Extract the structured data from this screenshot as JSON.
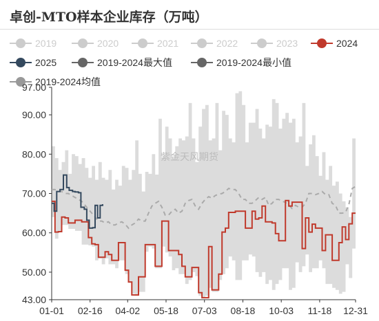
{
  "title": "卓创-MTO样本企业库存（万吨）",
  "watermark": "紫金天风期货",
  "colors": {
    "y2019": "#cccccc",
    "y2020": "#cccccc",
    "y2021": "#cccccc",
    "y2022": "#cccccc",
    "y2023": "#cccccc",
    "y2024": "#c0392b",
    "y2025": "#34495e",
    "max": "#666666",
    "min": "#666666",
    "avg": "#999999",
    "band": "#dcdcdc",
    "avg_line": "#aaaaaa"
  },
  "chart_data": {
    "type": "line",
    "xlabel": "",
    "ylabel": "",
    "ylim": [
      43,
      97
    ],
    "y_ticks": [
      "43.00",
      "50.00",
      "60.00",
      "70.00",
      "80.00",
      "90.00",
      "97.00"
    ],
    "y_tick_values": [
      43,
      50,
      60,
      70,
      80,
      90,
      97
    ],
    "x_ticks": [
      "01-01",
      "02-16",
      "04-02",
      "05-18",
      "07-03",
      "08-18",
      "10-03",
      "11-18",
      "12-31"
    ],
    "x_tick_days": [
      0,
      46,
      91,
      137,
      183,
      229,
      275,
      321,
      364
    ],
    "legend": {
      "row1": [
        "2019",
        "2020",
        "2021",
        "2022",
        "2023",
        "2024"
      ],
      "row2": [
        "2025",
        "2019-2024最大值",
        "2019-2024最小值"
      ],
      "row3": [
        "2019-2024均值"
      ]
    },
    "series": [
      {
        "name": "2025",
        "x": [
          0,
          3,
          6,
          10,
          14,
          18,
          21,
          25,
          28,
          32,
          35,
          39,
          42,
          45,
          49,
          52,
          55,
          58,
          61
        ],
        "y": [
          67.5,
          65.5,
          70.5,
          71,
          74.7,
          71.5,
          70.8,
          70.5,
          70.4,
          70.2,
          66.5,
          66,
          63.2,
          61.2,
          61.3,
          67,
          63.8,
          67,
          67.3
        ]
      },
      {
        "name": "2024",
        "x": [
          0,
          4,
          8,
          12,
          16,
          20,
          24,
          28,
          32,
          36,
          40,
          44,
          48,
          52,
          56,
          60,
          64,
          68,
          72,
          76,
          80,
          84,
          88,
          92,
          96,
          100,
          104,
          108,
          112,
          116,
          120,
          124,
          128,
          132,
          136,
          140,
          144,
          148,
          152,
          156,
          160,
          164,
          168,
          172,
          176,
          180,
          184,
          188,
          192,
          196,
          200,
          204,
          208,
          212,
          216,
          220,
          224,
          228,
          232,
          236,
          240,
          244,
          248,
          252,
          256,
          260,
          264,
          268,
          272,
          276,
          280,
          284,
          288,
          292,
          296,
          300,
          304,
          308,
          312,
          316,
          320,
          324,
          328,
          332,
          336,
          340,
          344,
          348,
          352,
          356,
          360,
          364
        ],
        "y": [
          68,
          60.2,
          60.3,
          64,
          63.8,
          62.5,
          62.5,
          63.2,
          63.2,
          62.8,
          62.8,
          58.8,
          57.2,
          57,
          53.8,
          53.8,
          55.2,
          54.5,
          53,
          53,
          57.5,
          57.5,
          50.5,
          47.5,
          44.2,
          44.2,
          48.8,
          48.8,
          57,
          57,
          57,
          51.5,
          51.5,
          63,
          63,
          55.5,
          55.5,
          55.5,
          54.5,
          51.5,
          48.8,
          48.8,
          51.2,
          51.2,
          44.8,
          43.5,
          43.5,
          56.5,
          45.5,
          45.5,
          49.5,
          60.2,
          61.2,
          65.2,
          65.2,
          65.5,
          65.5,
          65.5,
          61.2,
          61.2,
          65.5,
          63.5,
          63.8,
          66.8,
          62.8,
          62.8,
          62.5,
          59.8,
          58,
          58,
          68.2,
          66.8,
          67.8,
          67.8,
          67.8,
          56,
          63.8,
          60.2,
          62.2,
          61.2,
          61.2,
          55.5,
          59.5,
          59.5,
          53,
          53,
          57.5,
          61.5,
          58.3,
          62.3,
          65,
          65
        ]
      },
      {
        "name": "2019-2024最大值",
        "x": [
          0,
          4,
          8,
          12,
          16,
          20,
          24,
          28,
          32,
          36,
          40,
          44,
          48,
          52,
          56,
          60,
          64,
          68,
          72,
          76,
          80,
          84,
          88,
          92,
          96,
          100,
          104,
          108,
          112,
          116,
          120,
          124,
          128,
          132,
          136,
          140,
          144,
          148,
          152,
          156,
          160,
          164,
          168,
          172,
          176,
          180,
          184,
          188,
          192,
          196,
          200,
          204,
          208,
          212,
          216,
          220,
          224,
          228,
          232,
          236,
          240,
          244,
          248,
          252,
          256,
          260,
          264,
          268,
          272,
          276,
          280,
          284,
          288,
          292,
          296,
          300,
          304,
          308,
          312,
          316,
          320,
          324,
          328,
          332,
          336,
          340,
          344,
          348,
          352,
          356,
          360,
          364
        ],
        "y": [
          82,
          79,
          76,
          78,
          81,
          75,
          80,
          79.5,
          77.5,
          79,
          76.5,
          74,
          77,
          73.5,
          78,
          74,
          73.5,
          76,
          71,
          73.5,
          72,
          77,
          76.5,
          73.5,
          76,
          83.5,
          75,
          70.5,
          75.5,
          75,
          80,
          74.8,
          89,
          79,
          87,
          84,
          79,
          82,
          84,
          83.5,
          84.5,
          93,
          84,
          78,
          87,
          91.5,
          92.5,
          83.5,
          84,
          93,
          81,
          91,
          90,
          84,
          83,
          95.5,
          96,
          92.5,
          83,
          88,
          88,
          91.5,
          86.5,
          84,
          87.5,
          87,
          94,
          93,
          86.5,
          89,
          90.5,
          88,
          89,
          83,
          84.5,
          93,
          77,
          82.5,
          84.8,
          79.5,
          74.5,
          80.5,
          73.5,
          77,
          72,
          73,
          70,
          68,
          66.5,
          64,
          84,
          83.5
        ]
      },
      {
        "name": "2019-2024最小值",
        "x": [
          0,
          4,
          8,
          12,
          16,
          20,
          24,
          28,
          32,
          36,
          40,
          44,
          48,
          52,
          56,
          60,
          64,
          68,
          72,
          76,
          80,
          84,
          88,
          92,
          96,
          100,
          104,
          108,
          112,
          116,
          120,
          124,
          128,
          132,
          136,
          140,
          144,
          148,
          152,
          156,
          160,
          164,
          168,
          172,
          176,
          180,
          184,
          188,
          192,
          196,
          200,
          204,
          208,
          212,
          216,
          220,
          224,
          228,
          232,
          236,
          240,
          244,
          248,
          252,
          256,
          260,
          264,
          268,
          272,
          276,
          280,
          284,
          288,
          292,
          296,
          300,
          304,
          308,
          312,
          316,
          320,
          324,
          328,
          332,
          336,
          340,
          344,
          348,
          352,
          356,
          360,
          364
        ],
        "y": [
          64,
          58.5,
          60.2,
          62,
          62,
          61,
          61,
          60.5,
          60.5,
          57,
          57,
          56.8,
          56.5,
          53,
          53.5,
          52,
          53.5,
          52,
          52,
          51,
          53,
          53,
          49.5,
          47.5,
          44.5,
          44,
          45,
          45,
          55.2,
          56.5,
          56,
          51,
          51,
          56.5,
          55,
          54,
          50.5,
          51,
          49.5,
          49.5,
          47,
          48,
          50,
          49,
          44,
          43.5,
          44,
          46,
          45,
          45,
          48,
          49.5,
          51,
          54,
          53,
          48,
          48,
          53,
          53,
          54.5,
          54,
          50,
          48.8,
          50,
          47,
          48,
          45.5,
          47,
          48,
          51,
          51,
          45.5,
          46,
          52.5,
          50,
          51.5,
          54.5,
          50,
          51,
          51,
          53,
          51,
          47,
          47,
          46,
          45.5,
          44.5,
          45,
          52,
          48.5,
          56,
          56
        ]
      },
      {
        "name": "2019-2024均值",
        "x": [
          0,
          4,
          8,
          12,
          16,
          20,
          24,
          28,
          32,
          36,
          40,
          44,
          48,
          52,
          56,
          60,
          64,
          68,
          72,
          76,
          80,
          84,
          88,
          92,
          96,
          100,
          104,
          108,
          112,
          116,
          120,
          124,
          128,
          132,
          136,
          140,
          144,
          148,
          152,
          156,
          160,
          164,
          168,
          172,
          176,
          180,
          184,
          188,
          192,
          196,
          200,
          204,
          208,
          212,
          216,
          220,
          224,
          228,
          232,
          236,
          240,
          244,
          248,
          252,
          256,
          260,
          264,
          268,
          272,
          276,
          280,
          284,
          288,
          292,
          296,
          300,
          304,
          308,
          312,
          316,
          320,
          324,
          328,
          332,
          336,
          340,
          344,
          348,
          352,
          356,
          360,
          364
        ],
        "y": [
          71,
          71,
          70.5,
          70.5,
          70,
          70,
          69.5,
          69,
          68.5,
          68,
          67,
          66,
          65,
          64,
          63,
          63,
          62.5,
          62.8,
          62,
          62,
          62.5,
          62.8,
          62.2,
          61.2,
          62,
          62.5,
          63.5,
          63,
          63,
          65,
          66.8,
          67.5,
          68,
          66.5,
          64.5,
          64.5,
          65.5,
          66,
          65,
          65.5,
          67.5,
          68.2,
          68.5,
          66.8,
          66,
          67.5,
          68.5,
          69.2,
          68.8,
          69.5,
          69.8,
          70,
          70.5,
          71.3,
          71,
          71,
          70,
          68.5,
          68.5,
          67.5,
          67.5,
          68.2,
          69,
          68.5,
          69,
          67,
          67.5,
          68.5,
          68.5,
          68,
          67.8,
          67,
          66.2,
          67,
          66.5,
          66.5,
          67.5,
          70,
          70,
          69.7,
          70,
          70.5,
          69.7,
          69.7,
          67.5,
          67,
          65,
          65,
          65.2,
          67.2,
          71.3,
          71.8
        ]
      }
    ]
  }
}
